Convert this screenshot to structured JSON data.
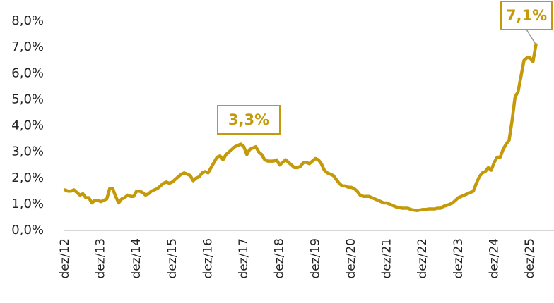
{
  "chart_data": {
    "type": "line",
    "categories": [
      "dez/12",
      null,
      null,
      null,
      null,
      null,
      null,
      null,
      null,
      null,
      null,
      null,
      "dez/13",
      null,
      null,
      null,
      null,
      null,
      null,
      null,
      null,
      null,
      null,
      null,
      "dez/14",
      null,
      null,
      null,
      null,
      null,
      null,
      null,
      null,
      null,
      null,
      null,
      "dez/15",
      null,
      null,
      null,
      null,
      null,
      null,
      null,
      null,
      null,
      null,
      null,
      "dez/16",
      null,
      null,
      null,
      null,
      null,
      null,
      null,
      null,
      null,
      null,
      null,
      "dez/17",
      null,
      null,
      null,
      null,
      null,
      null,
      null,
      null,
      null,
      null,
      null,
      "dez/18",
      null,
      null,
      null,
      null,
      null,
      null,
      null,
      null,
      null,
      null,
      null,
      "dez/19",
      null,
      null,
      null,
      null,
      null,
      null,
      null,
      null,
      null,
      null,
      null,
      "dez/20",
      null,
      null,
      null,
      null,
      null,
      null,
      null,
      null,
      null,
      null,
      null,
      "dez/21",
      null,
      null,
      null,
      null,
      null,
      null,
      null,
      null,
      null,
      null,
      null,
      "dez/22",
      null,
      null,
      null,
      null,
      null,
      null,
      null,
      null,
      null,
      null,
      null,
      "dez/23",
      null,
      null,
      null,
      null,
      null,
      null,
      null,
      null,
      null,
      null,
      null,
      "dez/24",
      null,
      null,
      null,
      null,
      null,
      null,
      null,
      null,
      null,
      null,
      null,
      "dez/25",
      null,
      null
    ],
    "values": [
      1.55,
      1.5,
      1.5,
      1.55,
      1.45,
      1.35,
      1.4,
      1.25,
      1.25,
      1.05,
      1.15,
      1.15,
      1.1,
      1.15,
      1.2,
      1.6,
      1.6,
      1.3,
      1.05,
      1.2,
      1.25,
      1.35,
      1.3,
      1.3,
      1.5,
      1.5,
      1.45,
      1.35,
      1.4,
      1.5,
      1.55,
      1.6,
      1.7,
      1.8,
      1.85,
      1.8,
      1.85,
      1.95,
      2.05,
      2.15,
      2.2,
      2.15,
      2.1,
      1.9,
      2.0,
      2.05,
      2.2,
      2.25,
      2.2,
      2.4,
      2.6,
      2.8,
      2.85,
      2.7,
      2.9,
      3.0,
      3.1,
      3.2,
      3.25,
      3.3,
      3.2,
      2.9,
      3.1,
      3.15,
      3.2,
      3.0,
      2.9,
      2.7,
      2.65,
      2.65,
      2.65,
      2.7,
      2.5,
      2.6,
      2.7,
      2.6,
      2.5,
      2.4,
      2.4,
      2.45,
      2.6,
      2.6,
      2.55,
      2.65,
      2.75,
      2.7,
      2.55,
      2.3,
      2.2,
      2.15,
      2.1,
      1.95,
      1.8,
      1.7,
      1.7,
      1.65,
      1.65,
      1.6,
      1.5,
      1.35,
      1.3,
      1.3,
      1.3,
      1.25,
      1.2,
      1.15,
      1.1,
      1.05,
      1.05,
      1.0,
      0.95,
      0.9,
      0.88,
      0.85,
      0.85,
      0.85,
      0.8,
      0.78,
      0.76,
      0.78,
      0.8,
      0.8,
      0.82,
      0.82,
      0.82,
      0.85,
      0.85,
      0.92,
      0.95,
      1.0,
      1.05,
      1.15,
      1.25,
      1.3,
      1.35,
      1.4,
      1.45,
      1.5,
      1.8,
      2.05,
      2.2,
      2.25,
      2.4,
      2.3,
      2.6,
      2.8,
      2.8,
      3.1,
      3.3,
      3.45,
      4.2,
      5.1,
      5.3,
      5.9,
      6.5,
      6.6,
      6.6,
      6.45,
      7.1
    ],
    "color": "#c49a0a",
    "ylim": [
      0,
      8
    ],
    "yticks": [
      {
        "value": 0,
        "label": "0,0%"
      },
      {
        "value": 1,
        "label": "1,0%"
      },
      {
        "value": 2,
        "label": "2,0%"
      },
      {
        "value": 3,
        "label": "3,0%"
      },
      {
        "value": 4,
        "label": "4,0%"
      },
      {
        "value": 5,
        "label": "5,0%"
      },
      {
        "value": 6,
        "label": "6,0%"
      },
      {
        "value": 7,
        "label": "7,0%"
      },
      {
        "value": 8,
        "label": "8,0%"
      }
    ],
    "annotations": [
      "3,3%",
      "7,1%"
    ],
    "grid": false
  }
}
